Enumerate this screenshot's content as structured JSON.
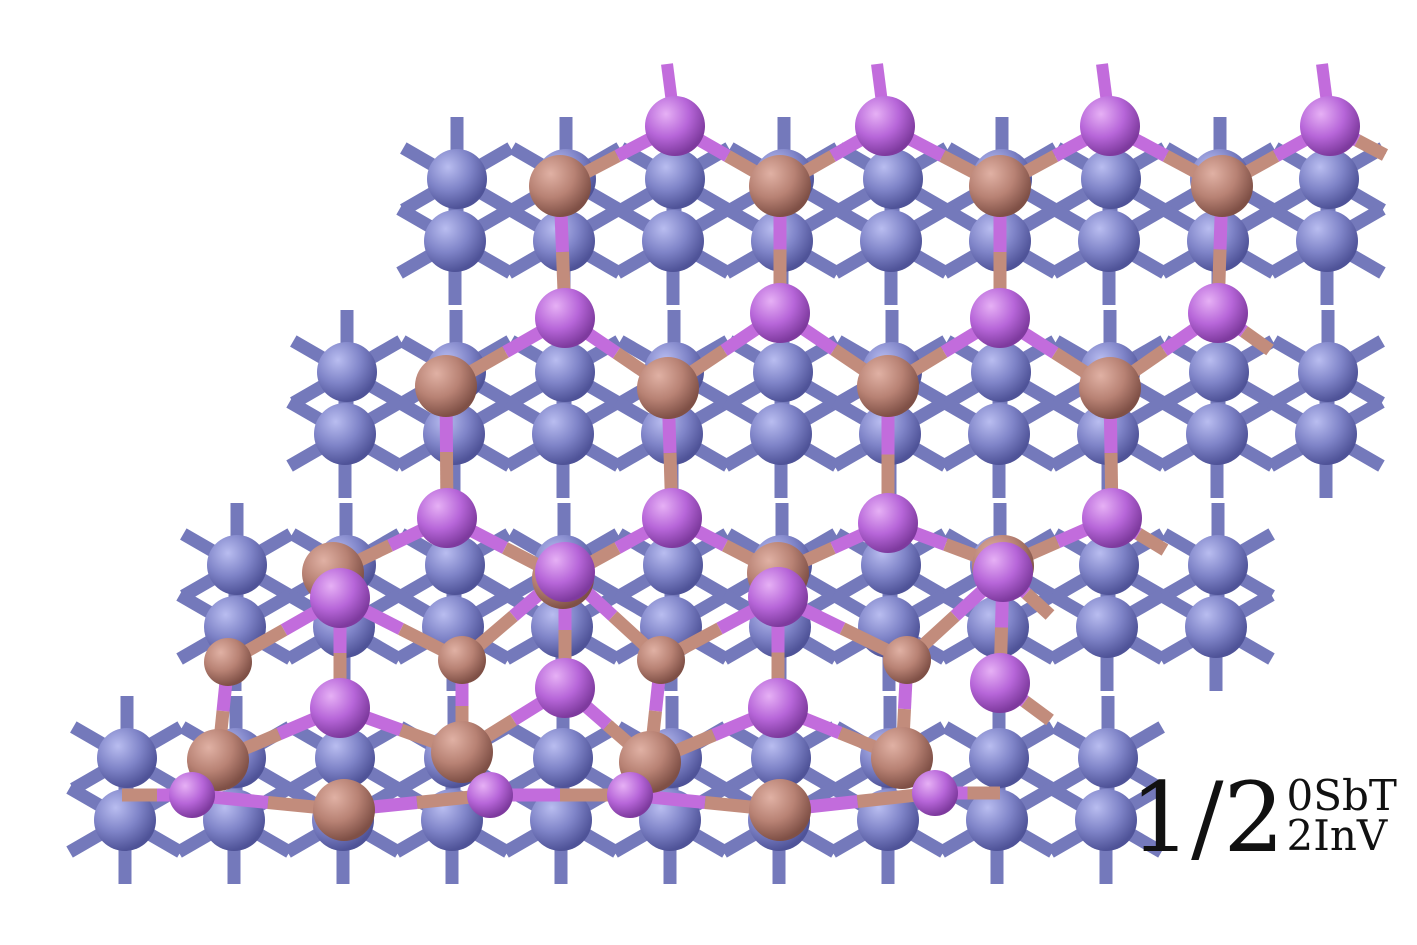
{
  "colors": {
    "background": "#ffffff",
    "substrate_atom": "#7f84c8",
    "substrate_bond": "#7479bb",
    "sb_atom": "#b88274",
    "sb_bond": "#c28c7c",
    "in_atom": "#b766d9",
    "in_bond": "#c26cdc"
  },
  "label": {
    "main": "1/2",
    "superscript": "0SbT",
    "subscript": "2InV"
  }
}
